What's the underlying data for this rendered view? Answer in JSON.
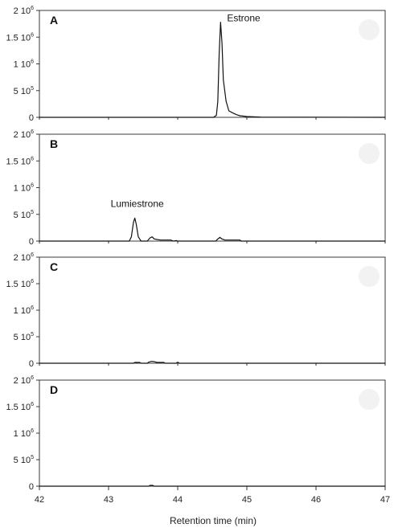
{
  "chart_data": [
    {
      "type": "line",
      "panel": "A",
      "xlabel": "Retention time (min)",
      "xlim": [
        42,
        47
      ],
      "ylim": [
        0,
        2000000
      ],
      "y_ticks": [
        0,
        500000,
        1000000,
        1500000,
        2000000
      ],
      "y_tick_labels": [
        "0",
        "5 10^5",
        "1 10^6",
        "1.5 10^6",
        "2 10^6"
      ],
      "annotations": [
        {
          "text": "Estrone",
          "x": 44.62,
          "y": 1780000
        }
      ],
      "series": [
        {
          "values": [
            [
              42,
              0
            ],
            [
              44.52,
              0
            ],
            [
              44.56,
              40000
            ],
            [
              44.58,
              300000
            ],
            [
              44.6,
              1200000
            ],
            [
              44.62,
              1780000
            ],
            [
              44.64,
              1400000
            ],
            [
              44.66,
              700000
            ],
            [
              44.7,
              300000
            ],
            [
              44.74,
              120000
            ],
            [
              44.8,
              80000
            ],
            [
              44.85,
              50000
            ],
            [
              44.9,
              30000
            ],
            [
              45,
              15000
            ],
            [
              45.2,
              5000
            ],
            [
              47,
              0
            ]
          ]
        }
      ]
    },
    {
      "type": "line",
      "panel": "B",
      "xlabel": "Retention time (min)",
      "xlim": [
        42,
        47
      ],
      "ylim": [
        0,
        2000000
      ],
      "y_ticks": [
        0,
        500000,
        1000000,
        1500000,
        2000000
      ],
      "y_tick_labels": [
        "0",
        "5 10^5",
        "1 10^6",
        "1.5 10^6",
        "2 10^6"
      ],
      "annotations": [
        {
          "text": "Lumiestrone",
          "x": 43.38,
          "y": 430000
        }
      ],
      "series": [
        {
          "values": [
            [
              42,
              0
            ],
            [
              43.3,
              0
            ],
            [
              43.33,
              80000
            ],
            [
              43.36,
              350000
            ],
            [
              43.38,
              430000
            ],
            [
              43.4,
              320000
            ],
            [
              43.43,
              80000
            ],
            [
              43.47,
              0
            ],
            [
              43.56,
              0
            ],
            [
              43.6,
              60000
            ],
            [
              43.63,
              80000
            ],
            [
              43.66,
              40000
            ],
            [
              43.7,
              30000
            ],
            [
              43.75,
              20000
            ],
            [
              43.8,
              20000
            ],
            [
              43.9,
              20000
            ],
            [
              43.94,
              0
            ],
            [
              43.98,
              10000
            ],
            [
              44,
              0
            ],
            [
              44.55,
              0
            ],
            [
              44.58,
              40000
            ],
            [
              44.61,
              70000
            ],
            [
              44.64,
              40000
            ],
            [
              44.68,
              20000
            ],
            [
              44.75,
              20000
            ],
            [
              44.9,
              20000
            ],
            [
              44.92,
              0
            ],
            [
              47,
              0
            ]
          ]
        }
      ]
    },
    {
      "type": "line",
      "panel": "C",
      "xlabel": "Retention time (min)",
      "xlim": [
        42,
        47
      ],
      "ylim": [
        0,
        2000000
      ],
      "y_ticks": [
        0,
        500000,
        1000000,
        1500000,
        2000000
      ],
      "y_tick_labels": [
        "0",
        "5 10^5",
        "1 10^6",
        "1.5 10^6",
        "2 10^6"
      ],
      "annotations": [],
      "series": [
        {
          "values": [
            [
              42,
              0
            ],
            [
              43.36,
              0
            ],
            [
              43.38,
              15000
            ],
            [
              43.45,
              15000
            ],
            [
              43.47,
              0
            ],
            [
              43.56,
              0
            ],
            [
              43.58,
              20000
            ],
            [
              43.62,
              35000
            ],
            [
              43.66,
              30000
            ],
            [
              43.7,
              15000
            ],
            [
              43.8,
              15000
            ],
            [
              43.82,
              0
            ],
            [
              43.98,
              0
            ],
            [
              43.99,
              15000
            ],
            [
              44.01,
              15000
            ],
            [
              44.02,
              0
            ],
            [
              47,
              0
            ]
          ]
        }
      ]
    },
    {
      "type": "line",
      "panel": "D",
      "xlabel": "Retention time (min)",
      "xlim": [
        42,
        47
      ],
      "ylim": [
        0,
        2000000
      ],
      "y_ticks": [
        0,
        500000,
        1000000,
        1500000,
        2000000
      ],
      "y_tick_labels": [
        "0",
        "5 10^5",
        "1 10^6",
        "1.5 10^6",
        "2 10^6"
      ],
      "x_ticks": [
        42,
        43,
        44,
        45,
        46,
        47
      ],
      "annotations": [],
      "series": [
        {
          "values": [
            [
              42,
              0
            ],
            [
              43.58,
              0
            ],
            [
              43.6,
              15000
            ],
            [
              43.64,
              15000
            ],
            [
              43.66,
              0
            ],
            [
              47,
              0
            ]
          ]
        }
      ]
    }
  ],
  "figure": {
    "panels": [
      {
        "letter": "A",
        "y_labels": [
          {
            "base": "2 10",
            "exp": "6"
          },
          {
            "base": "1.5 10",
            "exp": "6"
          },
          {
            "base": "1 10",
            "exp": "6"
          },
          {
            "base": "5 10",
            "exp": "5"
          },
          {
            "base": "0",
            "exp": ""
          }
        ]
      },
      {
        "letter": "B",
        "y_labels": [
          {
            "base": "2 10",
            "exp": "6"
          },
          {
            "base": "1.5 10",
            "exp": "6"
          },
          {
            "base": "1 10",
            "exp": "6"
          },
          {
            "base": "5 10",
            "exp": "5"
          },
          {
            "base": "0",
            "exp": ""
          }
        ]
      },
      {
        "letter": "C",
        "y_labels": [
          {
            "base": "2 10",
            "exp": "6"
          },
          {
            "base": "1.5 10",
            "exp": "6"
          },
          {
            "base": "1 10",
            "exp": "6"
          },
          {
            "base": "5 10",
            "exp": "5"
          },
          {
            "base": "0",
            "exp": ""
          }
        ]
      },
      {
        "letter": "D",
        "y_labels": [
          {
            "base": "2 10",
            "exp": "6"
          },
          {
            "base": "1.5 10",
            "exp": "6"
          },
          {
            "base": "1 10",
            "exp": "6"
          },
          {
            "base": "5 10",
            "exp": "5"
          },
          {
            "base": "0",
            "exp": ""
          }
        ]
      }
    ],
    "x_tick_labels": [
      "42",
      "43",
      "44",
      "45",
      "46",
      "47"
    ],
    "x_axis_title": "Retention time (min)",
    "colors": {
      "trace": "#111111",
      "frame": "#3a3a3a",
      "text": "#222222"
    }
  }
}
